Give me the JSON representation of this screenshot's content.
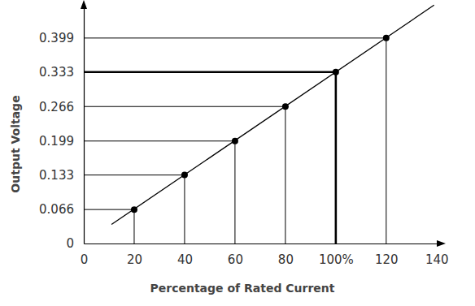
{
  "chart_data": {
    "type": "line",
    "x_label": "Percentage of Rated Current",
    "y_label": "Output Voltage",
    "series": [
      {
        "type": "line",
        "marker": "none",
        "color": "#000000",
        "x": [
          11,
          139
        ],
        "values": [
          0.037,
          0.463
        ]
      },
      {
        "type": "scatter",
        "marker": "circle",
        "color": "#000000",
        "x": [
          20,
          40,
          60,
          80,
          100,
          120
        ],
        "values": [
          0.066,
          0.133,
          0.199,
          0.266,
          0.333,
          0.399
        ]
      }
    ],
    "xlim": [
      0,
      142
    ],
    "ylim": [
      0,
      0.465
    ],
    "xticks": [
      0,
      20,
      40,
      60,
      80,
      {
        "value": 100,
        "label": "100%"
      },
      120,
      140
    ],
    "yticks": [
      0,
      0.066,
      0.133,
      0.199,
      0.266,
      0.333,
      0.399
    ],
    "grid": false
  }
}
